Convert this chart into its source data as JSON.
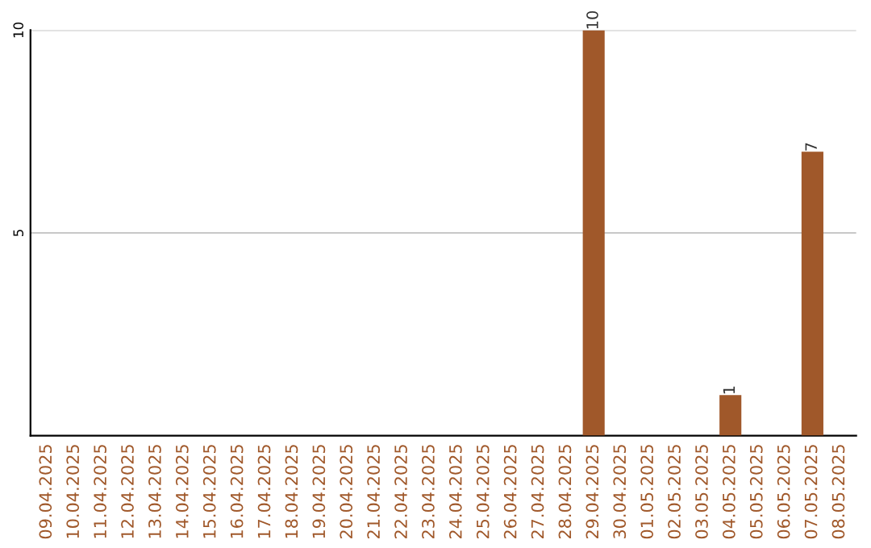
{
  "chart_data": {
    "type": "bar",
    "categories": [
      "09.04.2025",
      "10.04.2025",
      "11.04.2025",
      "12.04.2025",
      "13.04.2025",
      "14.04.2025",
      "15.04.2025",
      "16.04.2025",
      "17.04.2025",
      "18.04.2025",
      "19.04.2025",
      "20.04.2025",
      "21.04.2025",
      "22.04.2025",
      "23.04.2025",
      "24.04.2025",
      "25.04.2025",
      "26.04.2025",
      "27.04.2025",
      "28.04.2025",
      "29.04.2025",
      "30.04.2025",
      "01.05.2025",
      "02.05.2025",
      "03.05.2025",
      "04.05.2025",
      "05.05.2025",
      "06.05.2025",
      "07.05.2025",
      "08.05.2025"
    ],
    "values": [
      0,
      0,
      0,
      0,
      0,
      0,
      0,
      0,
      0,
      0,
      0,
      0,
      0,
      0,
      0,
      0,
      0,
      0,
      0,
      0,
      10,
      0,
      0,
      0,
      0,
      1,
      0,
      0,
      7,
      0
    ],
    "value_labels": [
      null,
      null,
      null,
      null,
      null,
      null,
      null,
      null,
      null,
      null,
      null,
      null,
      null,
      null,
      null,
      null,
      null,
      null,
      null,
      null,
      "10",
      null,
      null,
      null,
      null,
      "1",
      null,
      null,
      "7",
      null
    ],
    "color": "#a0582a",
    "ylim": [
      0,
      10
    ],
    "yticks": [
      5,
      10
    ],
    "grid": "y"
  }
}
